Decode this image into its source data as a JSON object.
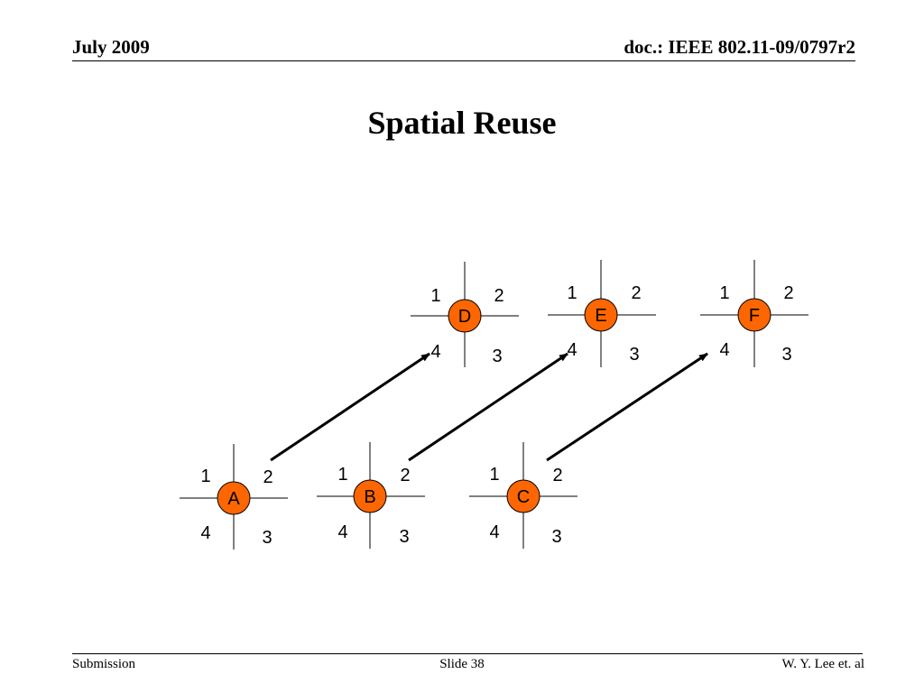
{
  "header": {
    "date": "July 2009",
    "doc": "doc.: IEEE 802.11-09/0797r2"
  },
  "title": "Spatial Reuse",
  "footer": {
    "left": "Submission",
    "center": "Slide 38",
    "right": "W. Y. Lee et. al"
  },
  "colors": {
    "node_fill": "#ff6600",
    "line": "#000000"
  },
  "nodes": [
    {
      "id": "A",
      "label": "A",
      "sectors": [
        "1",
        "2",
        "3",
        "4"
      ]
    },
    {
      "id": "B",
      "label": "B",
      "sectors": [
        "1",
        "2",
        "3",
        "4"
      ]
    },
    {
      "id": "C",
      "label": "C",
      "sectors": [
        "1",
        "2",
        "3",
        "4"
      ]
    },
    {
      "id": "D",
      "label": "D",
      "sectors": [
        "1",
        "2",
        "3",
        "4"
      ]
    },
    {
      "id": "E",
      "label": "E",
      "sectors": [
        "1",
        "2",
        "3",
        "4"
      ]
    },
    {
      "id": "F",
      "label": "F",
      "sectors": [
        "1",
        "2",
        "3",
        "4"
      ]
    }
  ],
  "links": [
    {
      "from": "A",
      "to": "D",
      "from_sector": "2",
      "to_sector": "4"
    },
    {
      "from": "B",
      "to": "E",
      "from_sector": "2",
      "to_sector": "4"
    },
    {
      "from": "C",
      "to": "F",
      "from_sector": "2",
      "to_sector": "4"
    }
  ]
}
